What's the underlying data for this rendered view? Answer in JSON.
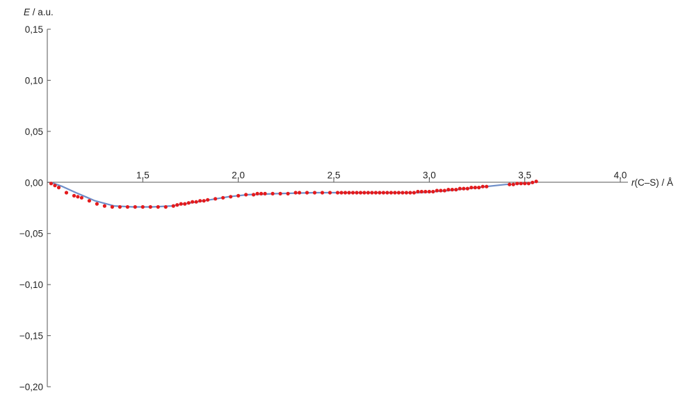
{
  "chart_data": {
    "type": "line",
    "title": "",
    "xlabel": "r(C–S) / Å",
    "xlabel_italic": "r",
    "xlabel_rest": "(C–S) / Å",
    "ylabel": "E / a.u.",
    "ylabel_italic": "E",
    "ylabel_rest": " / a.u.",
    "xlim": [
      1.0,
      4.0
    ],
    "ylim": [
      -0.2,
      0.15
    ],
    "grid": false,
    "legend": "none",
    "x_ticks": [
      1.5,
      2.0,
      2.5,
      3.0,
      3.5,
      4.0
    ],
    "x_tick_labels": [
      "1,5",
      "2,0",
      "2,5",
      "3,0",
      "3,5",
      "4,0"
    ],
    "y_ticks": [
      0.15,
      0.1,
      0.05,
      0.0,
      -0.05,
      -0.1,
      -0.15,
      -0.2
    ],
    "y_tick_labels": [
      "0,15",
      "0,10",
      "0,05",
      "0,00",
      "−0,05",
      "−0,10",
      "−0,15",
      "−0,20"
    ],
    "colors": {
      "line": "#6f8fc9",
      "points": "#e41a1c",
      "axis": "#555555"
    },
    "series": [
      {
        "style": "line",
        "x": [
          1.02,
          1.08,
          1.15,
          1.25,
          1.35,
          1.45,
          1.55,
          1.65,
          1.75,
          1.85,
          1.95,
          2.05,
          2.2,
          2.4,
          2.6,
          2.8,
          2.95,
          3.1,
          3.25,
          3.4,
          3.5,
          3.55
        ],
        "y": [
          0.0,
          -0.004,
          -0.01,
          -0.018,
          -0.023,
          -0.024,
          -0.024,
          -0.023,
          -0.02,
          -0.017,
          -0.014,
          -0.012,
          -0.011,
          -0.01,
          -0.01,
          -0.01,
          -0.01,
          -0.008,
          -0.005,
          -0.002,
          -0.001,
          0.0
        ]
      },
      {
        "style": "points",
        "x": [
          1.02,
          1.04,
          1.06,
          1.1,
          1.14,
          1.16,
          1.18,
          1.22,
          1.26,
          1.3,
          1.34,
          1.38,
          1.42,
          1.46,
          1.5,
          1.54,
          1.58,
          1.62,
          1.66,
          1.68,
          1.7,
          1.72,
          1.74,
          1.76,
          1.78,
          1.8,
          1.82,
          1.84,
          1.88,
          1.92,
          1.96,
          2.0,
          2.04,
          2.08,
          2.1,
          2.12,
          2.14,
          2.18,
          2.22,
          2.26,
          2.3,
          2.32,
          2.36,
          2.4,
          2.44,
          2.48,
          2.52,
          2.54,
          2.56,
          2.58,
          2.6,
          2.62,
          2.64,
          2.66,
          2.68,
          2.7,
          2.72,
          2.74,
          2.76,
          2.78,
          2.8,
          2.82,
          2.84,
          2.86,
          2.88,
          2.9,
          2.92,
          2.94,
          2.96,
          2.98,
          3.0,
          3.02,
          3.04,
          3.06,
          3.08,
          3.1,
          3.12,
          3.14,
          3.16,
          3.18,
          3.2,
          3.22,
          3.24,
          3.26,
          3.28,
          3.3,
          3.42,
          3.44,
          3.46,
          3.48,
          3.5,
          3.52,
          3.54,
          3.56
        ],
        "y": [
          -0.001,
          -0.003,
          -0.005,
          -0.01,
          -0.013,
          -0.014,
          -0.015,
          -0.018,
          -0.021,
          -0.023,
          -0.024,
          -0.024,
          -0.024,
          -0.024,
          -0.024,
          -0.024,
          -0.024,
          -0.024,
          -0.023,
          -0.022,
          -0.021,
          -0.021,
          -0.02,
          -0.019,
          -0.019,
          -0.018,
          -0.018,
          -0.017,
          -0.016,
          -0.015,
          -0.014,
          -0.013,
          -0.012,
          -0.012,
          -0.011,
          -0.011,
          -0.011,
          -0.011,
          -0.011,
          -0.011,
          -0.01,
          -0.01,
          -0.01,
          -0.01,
          -0.01,
          -0.01,
          -0.01,
          -0.01,
          -0.01,
          -0.01,
          -0.01,
          -0.01,
          -0.01,
          -0.01,
          -0.01,
          -0.01,
          -0.01,
          -0.01,
          -0.01,
          -0.01,
          -0.01,
          -0.01,
          -0.01,
          -0.01,
          -0.01,
          -0.01,
          -0.01,
          -0.009,
          -0.009,
          -0.009,
          -0.009,
          -0.009,
          -0.008,
          -0.008,
          -0.008,
          -0.007,
          -0.007,
          -0.007,
          -0.006,
          -0.006,
          -0.006,
          -0.005,
          -0.005,
          -0.005,
          -0.004,
          -0.004,
          -0.002,
          -0.002,
          -0.001,
          -0.001,
          -0.001,
          -0.001,
          0.0,
          0.001
        ]
      }
    ]
  }
}
